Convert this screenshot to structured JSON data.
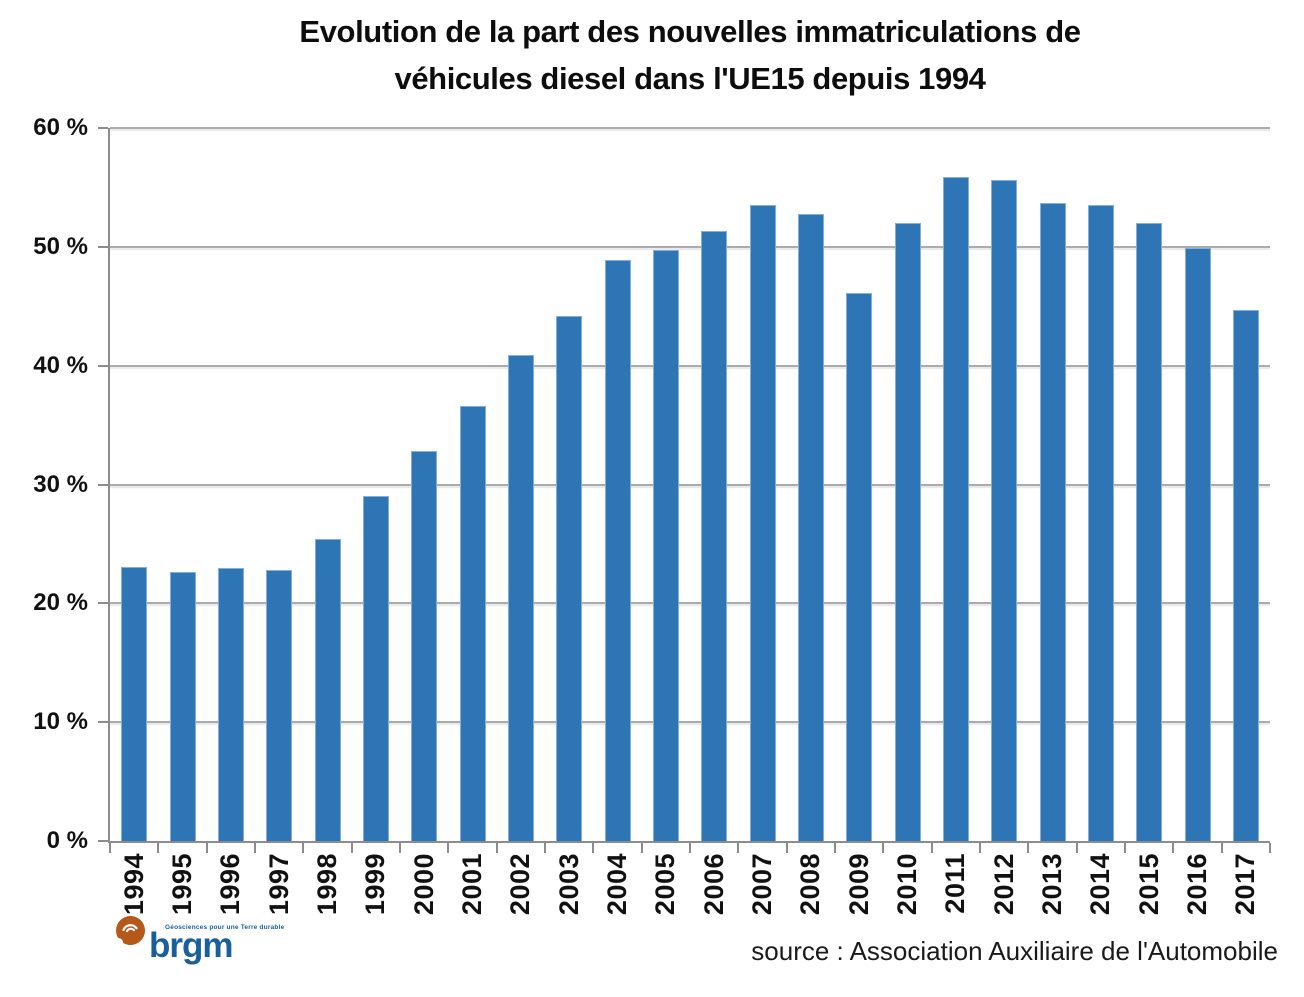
{
  "title": {
    "line1": "Evolution de la part des nouvelles immatriculations de",
    "line2": "véhicules diesel dans l'UE15 depuis 1994"
  },
  "source_note": "source : Association Auxiliaire de l'Automobile",
  "logo": {
    "name": "brgm",
    "tagline": "Géosciences pour une Terre durable",
    "orange": "#b4591a",
    "blue": "#1a5e9e"
  },
  "colors": {
    "bar": "#2e75b6",
    "bar_edge": "#85aed8",
    "gridline": "#ababab",
    "axis": "#8c8c8c",
    "text": "#000000"
  },
  "chart_data": {
    "type": "bar",
    "title": "Evolution de la part des nouvelles immatriculations de véhicules diesel dans l'UE15 depuis 1994",
    "xlabel": "",
    "ylabel": "",
    "categories": [
      "1994",
      "1995",
      "1996",
      "1997",
      "1998",
      "1999",
      "2000",
      "2001",
      "2002",
      "2003",
      "2004",
      "2005",
      "2006",
      "2007",
      "2008",
      "2009",
      "2010",
      "2011",
      "2012",
      "2013",
      "2014",
      "2015",
      "2016",
      "2017"
    ],
    "values": [
      23.1,
      22.6,
      23.0,
      22.8,
      25.4,
      29.0,
      32.8,
      36.6,
      40.9,
      44.2,
      48.9,
      49.7,
      51.3,
      53.5,
      52.8,
      46.1,
      52.0,
      55.9,
      55.6,
      53.7,
      53.5,
      52.0,
      49.9,
      44.7
    ],
    "ylim": [
      0,
      60
    ],
    "ytick_values": [
      0,
      10,
      20,
      30,
      40,
      50,
      60
    ],
    "ytick_labels": [
      "0 %",
      "10 %",
      "20 %",
      "30 %",
      "40 %",
      "50 %",
      "60 %"
    ],
    "unit": "%",
    "grid": true,
    "legend": false
  }
}
